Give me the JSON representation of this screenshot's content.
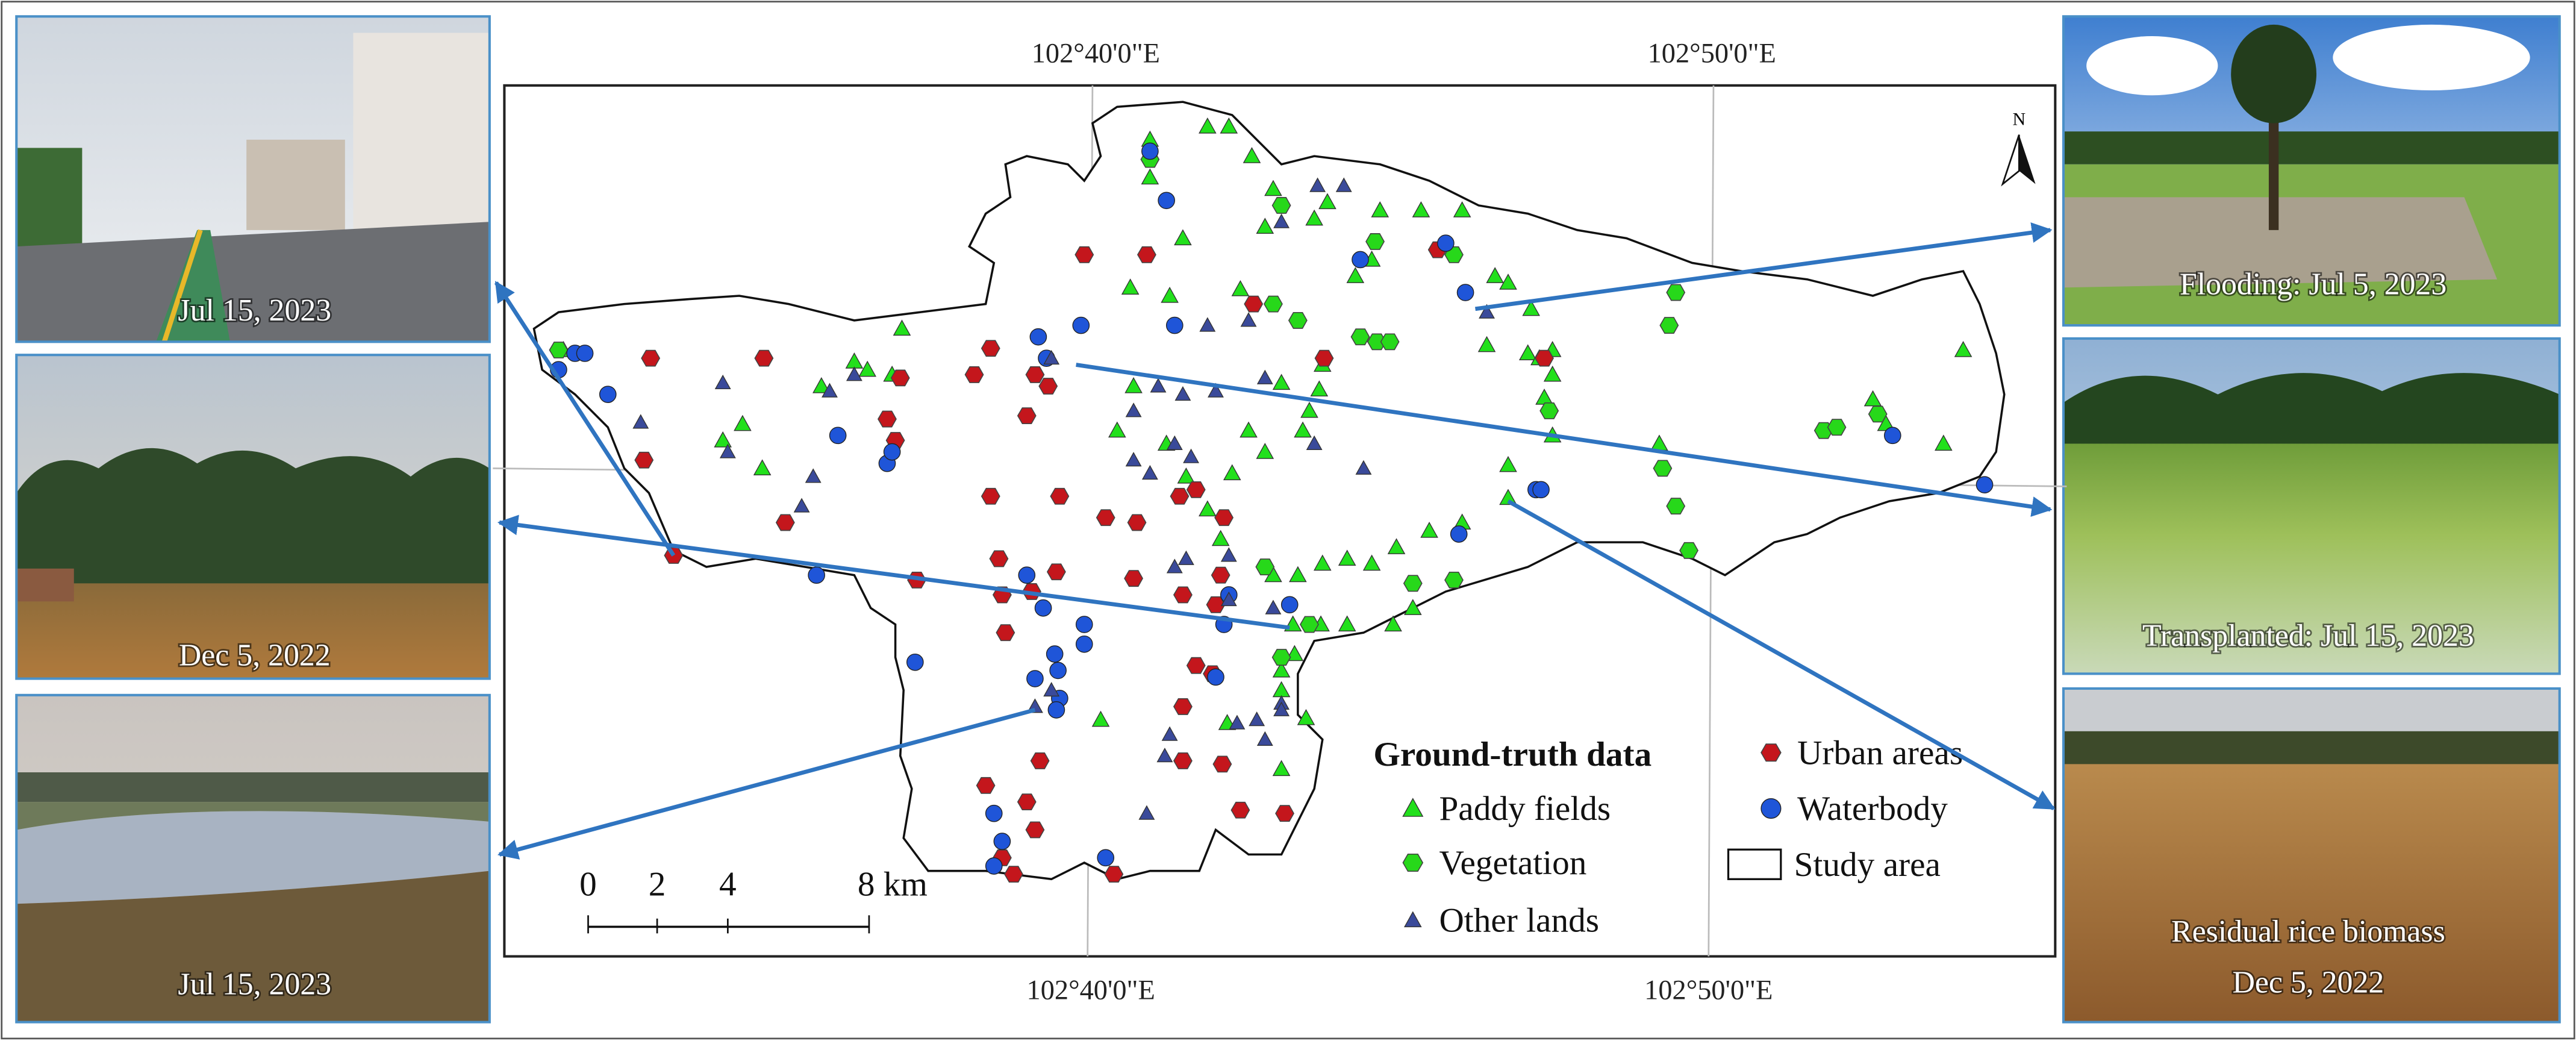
{
  "map": {
    "graticule": {
      "top": [
        "102°40'0\"E",
        "102°50'0\"E"
      ],
      "bottom": [
        "102°40'0\"E",
        "102°50'0\"E"
      ]
    },
    "north": "N",
    "scale_bar": [
      "0",
      "2",
      "4",
      "8 km"
    ],
    "legend": {
      "title": "Ground-truth data",
      "items": [
        "Urban areas",
        "Paddy fields",
        "Waterbody",
        "Vegetation",
        "Study area",
        "Other lands"
      ]
    }
  },
  "photos": [
    {
      "caption": [
        "Jul 15, 2023"
      ]
    },
    {
      "caption": [
        "Dec 5, 2022"
      ]
    },
    {
      "caption": [
        "Jul 15, 2023"
      ]
    },
    {
      "caption": [
        "Flooding: Jul 5, 2023"
      ]
    },
    {
      "caption": [
        "Transplanted: Jul 15, 2023"
      ]
    },
    {
      "caption": [
        "Residual rice biomass",
        "Dec 5, 2022"
      ]
    }
  ]
}
